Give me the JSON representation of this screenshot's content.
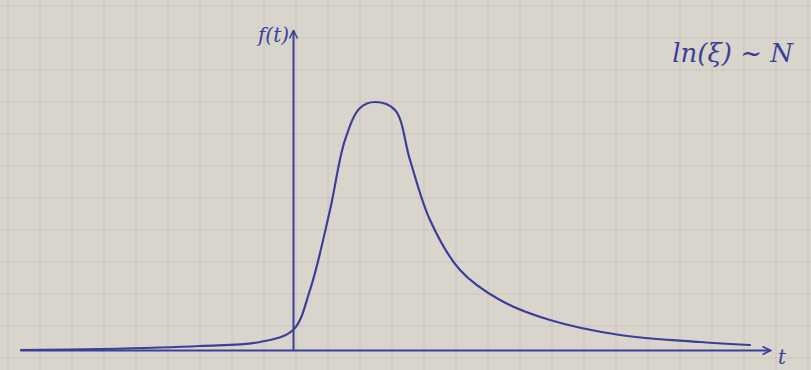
{
  "chart_data": {
    "type": "line",
    "annotations": [
      "ln(ξ) ~ N"
    ],
    "x_label": "t",
    "y_label": "f(t)",
    "x": [
      -2.73,
      -1.93,
      -0.93,
      -0.33,
      0,
      0.17,
      0.37,
      0.52,
      0.67,
      0.82,
      1.02,
      1.17,
      1.37,
      1.67,
      2.07,
      2.57,
      3.27,
      4.07,
      4.57
    ],
    "values": [
      0,
      0.01,
      0.04,
      0.08,
      0.2,
      0.6,
      1.4,
      2.1,
      2.42,
      2.48,
      2.4,
      1.9,
      1.3,
      0.8,
      0.5,
      0.3,
      0.15,
      0.08,
      0.05
    ],
    "color": "#3b3f98",
    "xlim": [
      -2.73,
      4.77
    ],
    "ylim": [
      0,
      3.2
    ],
    "tick_labels": false
  }
}
